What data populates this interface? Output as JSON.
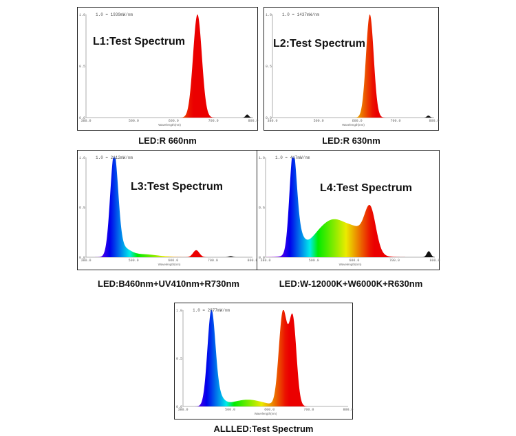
{
  "panels": [
    {
      "title": "L1:Test Spectrum",
      "caption": "LED:R 660nm",
      "scale_label": "1.0 = 1939mW/nm",
      "y_ticks": [
        "1.0",
        "0.5",
        "0.0"
      ],
      "x_ticks": [
        "380.0",
        "500.0",
        "600.0",
        "700.0",
        "800.0"
      ],
      "x_label": "Wavelength(nm)",
      "chart_data": {
        "type": "area",
        "xlim": [
          380,
          800
        ],
        "ylim": [
          0,
          1
        ],
        "series": [
          {
            "peaks": [
              {
                "center": 660,
                "height": 1.0,
                "width": 11
              }
            ]
          }
        ],
        "tail": [
          {
            "center": 785,
            "height": 0.03,
            "width": 4
          }
        ]
      }
    },
    {
      "title": "L2:Test Spectrum",
      "caption": "LED:R 630nm",
      "scale_label": "1.0 = 1437mW/nm",
      "y_ticks": [
        "1.0",
        "0.5",
        "0.0"
      ],
      "x_ticks": [
        "380.0",
        "500.0",
        "600.0",
        "700.0",
        "800.0"
      ],
      "x_label": "Wavelength(nm)",
      "chart_data": {
        "type": "area",
        "xlim": [
          380,
          800
        ],
        "ylim": [
          0,
          1
        ],
        "series": [
          {
            "peaks": [
              {
                "center": 633,
                "height": 1.0,
                "width": 10
              }
            ]
          }
        ],
        "tail": [
          {
            "center": 785,
            "height": 0.02,
            "width": 4
          }
        ]
      }
    },
    {
      "title": "L3:Test Spectrum",
      "caption": "LED:B460nm+UV410nm+R730nm",
      "scale_label": "1.0 = 2112mW/nm",
      "y_ticks": [
        "1.0",
        "0.5",
        "0.0"
      ],
      "x_ticks": [
        "380.0",
        "500.0",
        "600.0",
        "700.0",
        "800.0"
      ],
      "x_label": "Wavelength(nm)",
      "chart_data": {
        "type": "area",
        "xlim": [
          380,
          800
        ],
        "ylim": [
          0,
          1
        ],
        "series": [
          {
            "peaks": [
              {
                "center": 451,
                "height": 1.0,
                "width": 10
              },
              {
                "center": 472,
                "height": 0.08,
                "width": 18
              },
              {
                "center": 520,
                "height": 0.03,
                "width": 40
              },
              {
                "center": 658,
                "height": 0.07,
                "width": 8
              }
            ]
          }
        ],
        "tail": [
          {
            "center": 745,
            "height": 0.01,
            "width": 5
          }
        ]
      }
    },
    {
      "title": "L4:Test Spectrum",
      "caption": "LED:W-12000K+W6000K+R630nm",
      "scale_label": "1.0 = 417mW/nm",
      "y_ticks": [
        "1.0",
        "0.5",
        "0.0"
      ],
      "x_ticks": [
        "380.0",
        "500.0",
        "600.0",
        "700.0",
        "800.0"
      ],
      "x_label": "Wavelength(nm)",
      "chart_data": {
        "type": "area",
        "xlim": [
          380,
          800
        ],
        "ylim": [
          0,
          1
        ],
        "series": [
          {
            "peaks": [
              {
                "center": 448,
                "height": 0.95,
                "width": 9
              },
              {
                "center": 462,
                "height": 0.15,
                "width": 12
              },
              {
                "center": 550,
                "height": 0.38,
                "width": 48
              },
              {
                "center": 640,
                "height": 0.42,
                "width": 14
              },
              {
                "center": 610,
                "height": 0.1,
                "width": 20
              }
            ]
          }
        ],
        "tail": [
          {
            "center": 785,
            "height": 0.06,
            "width": 5
          }
        ]
      }
    },
    {
      "title": "",
      "caption": "ALLLED:Test Spectrum",
      "scale_label": "1.0 = 2877mW/nm",
      "y_ticks": [
        "1.0",
        "0.5",
        "0.0"
      ],
      "x_ticks": [
        "380.0",
        "500.0",
        "600.0",
        "700.0",
        "800.0"
      ],
      "x_label": "Wavelength(nm)",
      "chart_data": {
        "type": "area",
        "xlim": [
          380,
          800
        ],
        "ylim": [
          0,
          1
        ],
        "series": [
          {
            "peaks": [
              {
                "center": 452,
                "height": 0.95,
                "width": 10
              },
              {
                "center": 468,
                "height": 0.1,
                "width": 14
              },
              {
                "center": 545,
                "height": 0.07,
                "width": 40
              },
              {
                "center": 633,
                "height": 0.78,
                "width": 10
              },
              {
                "center": 660,
                "height": 0.74,
                "width": 9
              },
              {
                "center": 646,
                "height": 0.3,
                "width": 14
              }
            ]
          }
        ],
        "tail": []
      }
    }
  ],
  "colors": {
    "frame": "#222222",
    "axis": "#999999",
    "text": "#111111"
  }
}
